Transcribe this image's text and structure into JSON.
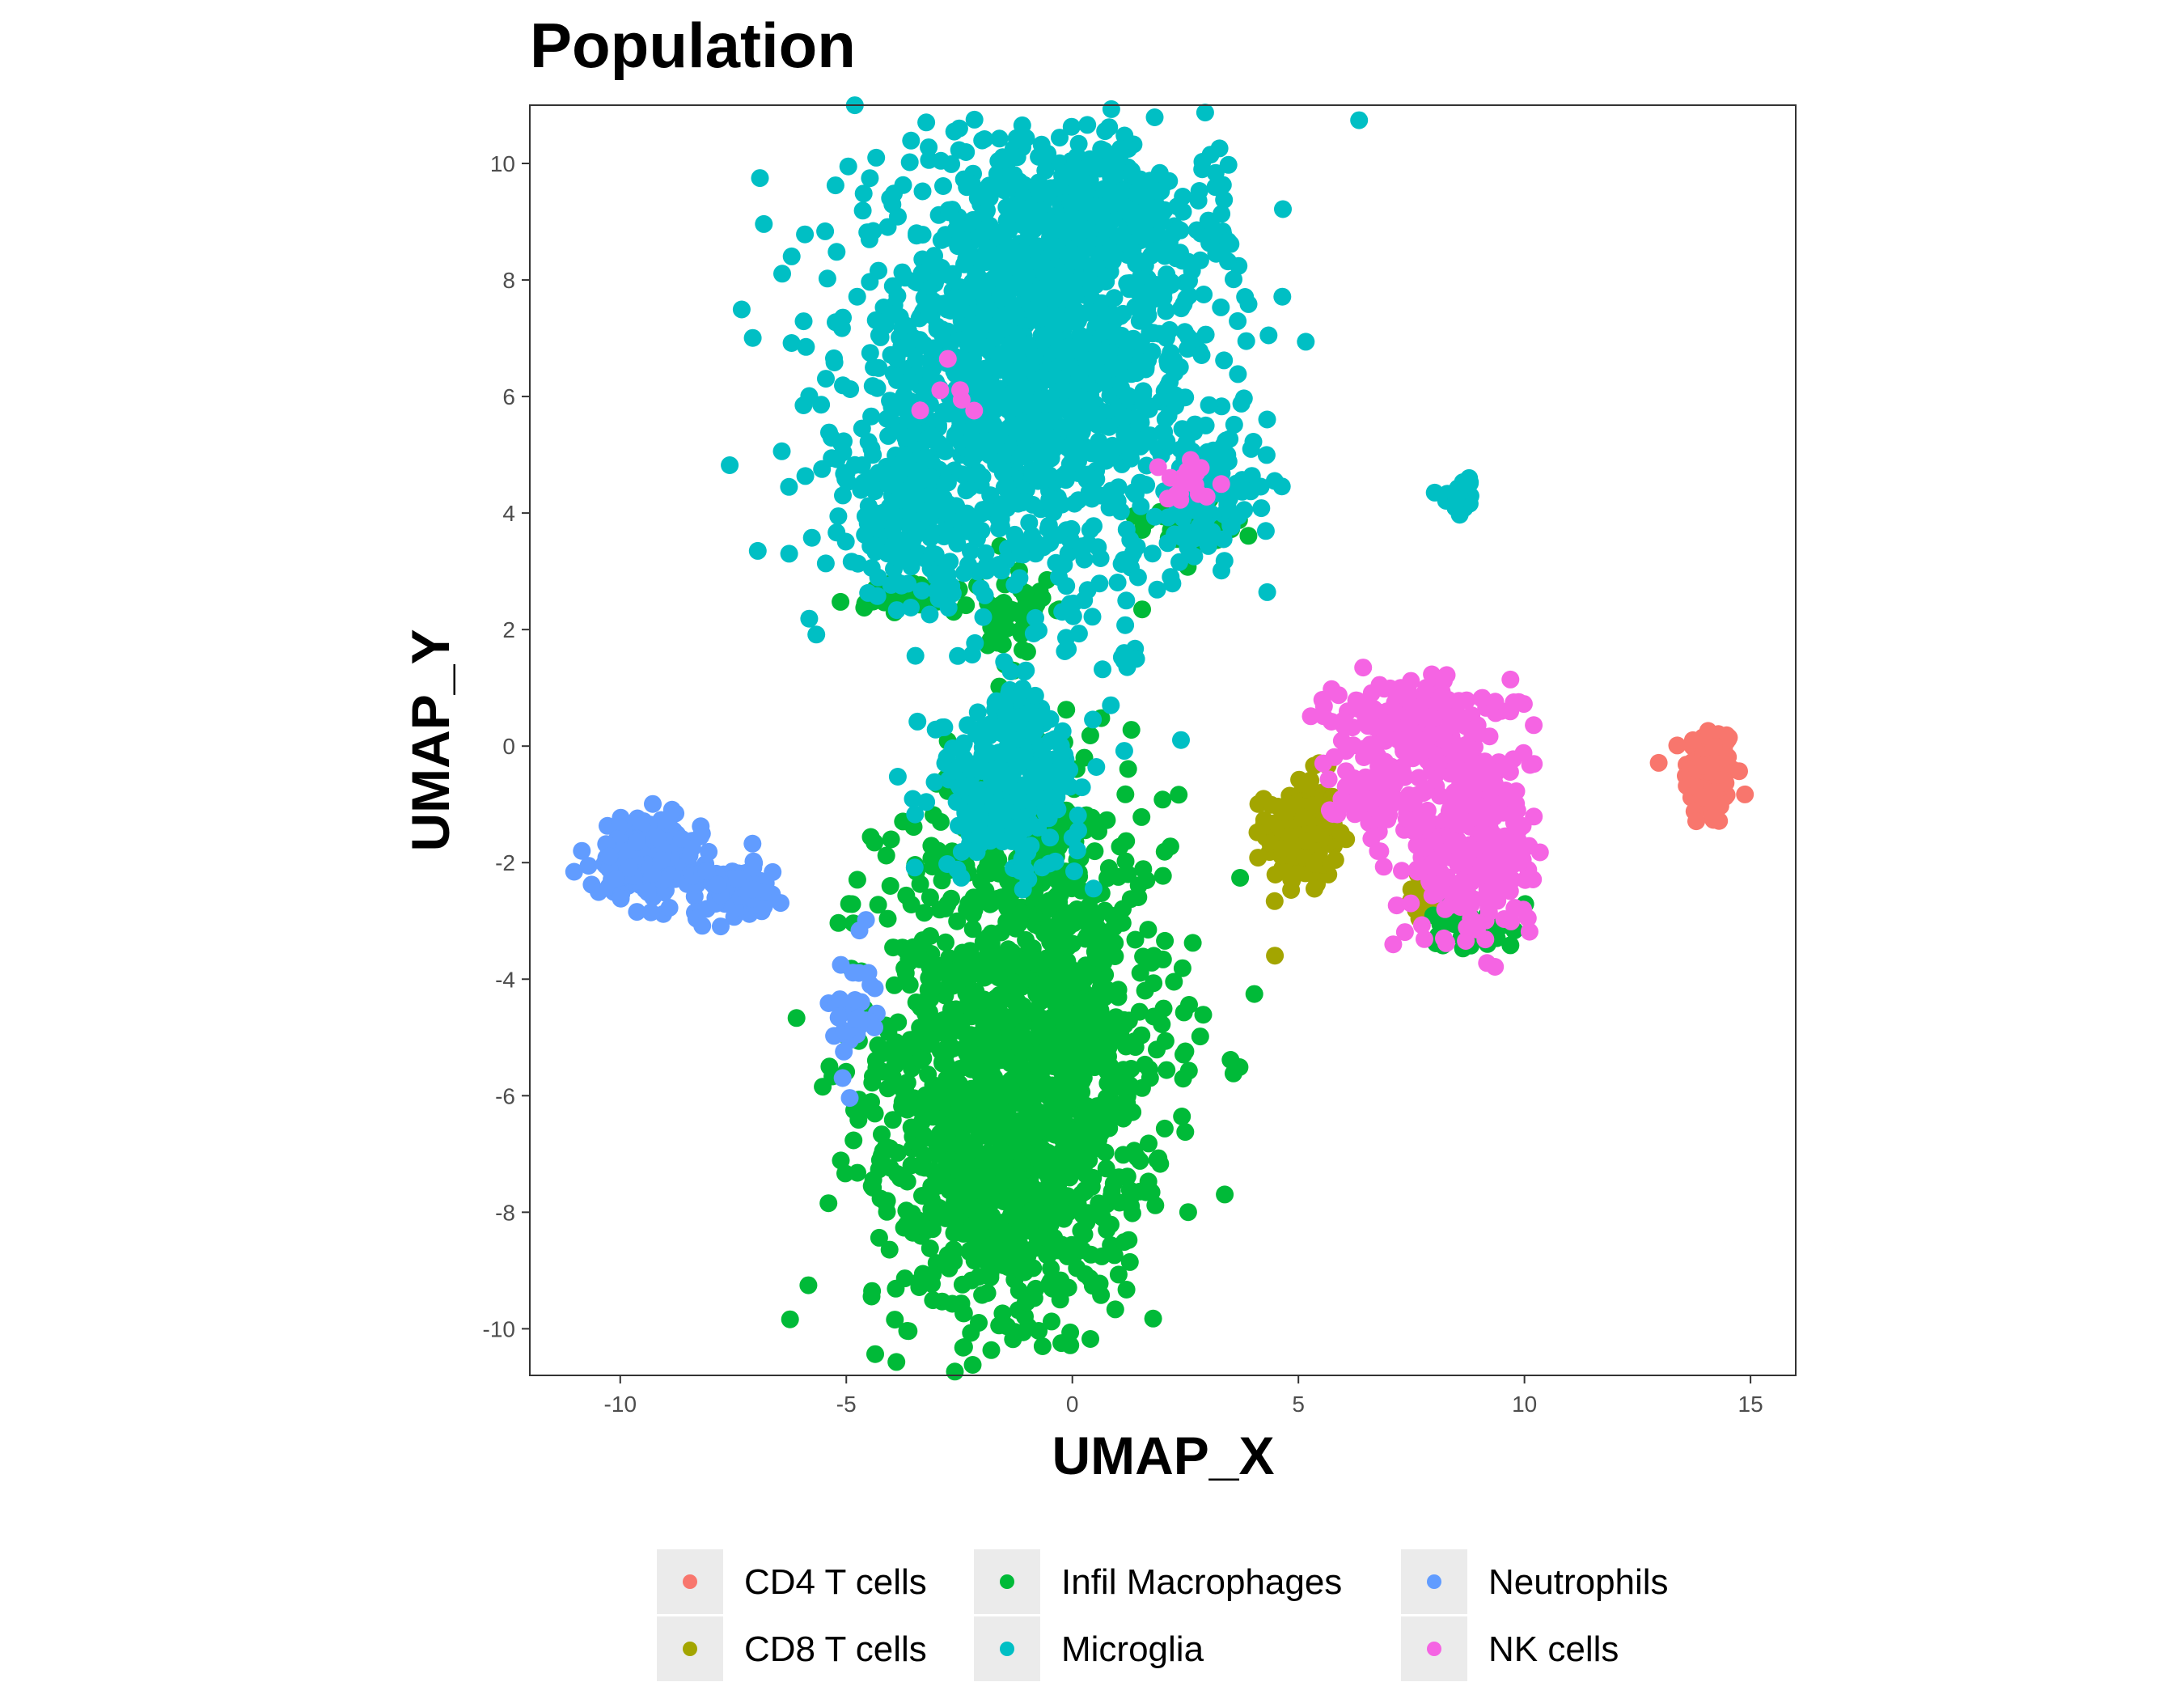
{
  "chart_data": {
    "type": "scatter",
    "title": "Population",
    "xlabel": "UMAP_X",
    "ylabel": "UMAP_Y",
    "xlim": [
      -12.0,
      16.0
    ],
    "ylim": [
      -10.8,
      11.0
    ],
    "xticks": [
      -10,
      -5,
      0,
      5,
      10,
      15
    ],
    "xtick_labels": [
      "-10",
      "-5",
      "0",
      "5",
      "10",
      "15"
    ],
    "yticks": [
      10,
      8,
      6,
      4,
      2,
      0,
      -2,
      -4,
      -6,
      -8,
      -10
    ],
    "ytick_labels": [
      "10",
      "8",
      "6",
      "4",
      "2",
      "0",
      "-2",
      "-4",
      "-6",
      "-8",
      "-10"
    ],
    "grid": false,
    "legend_position": "bottom",
    "series": [
      {
        "name": "CD4 T cells",
        "color": "#F8766D",
        "clusters": [
          {
            "center": [
              14.1,
              -0.5
            ],
            "spread": [
              0.28,
              0.45
            ],
            "n": 140
          }
        ]
      },
      {
        "name": "CD8 T cells",
        "color": "#A3A500",
        "clusters": [
          {
            "center": [
              5.1,
              -1.5
            ],
            "spread": [
              0.4,
              0.5
            ],
            "n": 160
          },
          {
            "center": [
              7.9,
              -2.5
            ],
            "spread": [
              0.3,
              0.2
            ],
            "n": 30
          }
        ]
      },
      {
        "name": "Infil Macrophages",
        "color": "#00BA38",
        "clusters": [
          {
            "center": [
              -1.1,
              -5.2
            ],
            "spread": [
              1.6,
              2.2
            ],
            "n": 1300
          },
          {
            "center": [
              -1.8,
              -7.6
            ],
            "spread": [
              1.2,
              1.0
            ],
            "n": 250
          },
          {
            "center": [
              -1.2,
              2.2
            ],
            "spread": [
              0.35,
              0.45
            ],
            "n": 50
          },
          {
            "center": [
              -3.5,
              2.6
            ],
            "spread": [
              0.7,
              0.15
            ],
            "n": 40
          },
          {
            "center": [
              2.5,
              3.8
            ],
            "spread": [
              0.6,
              0.25
            ],
            "n": 30
          },
          {
            "center": [
              -0.2,
              -1.4
            ],
            "spread": [
              0.2,
              0.2
            ],
            "n": 20
          },
          {
            "center": [
              8.8,
              -3.0
            ],
            "spread": [
              0.5,
              0.25
            ],
            "n": 40
          }
        ]
      },
      {
        "name": "Microglia",
        "color": "#00BFC4",
        "clusters": [
          {
            "center": [
              -0.9,
              6.6
            ],
            "spread": [
              2.0,
              1.9
            ],
            "n": 1500
          },
          {
            "center": [
              1.0,
              9.0
            ],
            "spread": [
              1.2,
              0.6
            ],
            "n": 200
          },
          {
            "center": [
              -3.6,
              4.0
            ],
            "spread": [
              0.7,
              0.7
            ],
            "n": 150
          },
          {
            "center": [
              3.0,
              4.3
            ],
            "spread": [
              0.5,
              0.45
            ],
            "n": 100
          },
          {
            "center": [
              -1.4,
              -0.7
            ],
            "spread": [
              0.8,
              0.7
            ],
            "n": 260
          },
          {
            "center": [
              -1.3,
              0.4
            ],
            "spread": [
              0.35,
              0.35
            ],
            "n": 60
          },
          {
            "center": [
              8.6,
              4.3
            ],
            "spread": [
              0.2,
              0.15
            ],
            "n": 25
          },
          {
            "center": [
              1.3,
              1.55
            ],
            "spread": [
              0.1,
              0.07
            ],
            "n": 10
          }
        ]
      },
      {
        "name": "Neutrophils",
        "color": "#619CFF",
        "clusters": [
          {
            "center": [
              -9.4,
              -1.9
            ],
            "spread": [
              0.55,
              0.35
            ],
            "n": 230
          },
          {
            "center": [
              -7.4,
              -2.5
            ],
            "spread": [
              0.45,
              0.25
            ],
            "n": 90
          },
          {
            "center": [
              -4.9,
              -4.5
            ],
            "spread": [
              0.25,
              0.55
            ],
            "n": 35
          }
        ]
      },
      {
        "name": "NK cells",
        "color": "#F564E3",
        "clusters": [
          {
            "center": [
              8.8,
              -1.6
            ],
            "spread": [
              0.7,
              0.9
            ],
            "n": 350
          },
          {
            "center": [
              7.5,
              0.5
            ],
            "spread": [
              0.8,
              0.35
            ],
            "n": 180
          },
          {
            "center": [
              6.6,
              -0.7
            ],
            "spread": [
              0.5,
              0.35
            ],
            "n": 80
          },
          {
            "center": [
              2.5,
              4.5
            ],
            "spread": [
              0.3,
              0.2
            ],
            "n": 20
          },
          {
            "center": [
              -2.5,
              6.0
            ],
            "spread": [
              0.9,
              0.6
            ],
            "n": 6
          }
        ]
      }
    ]
  }
}
